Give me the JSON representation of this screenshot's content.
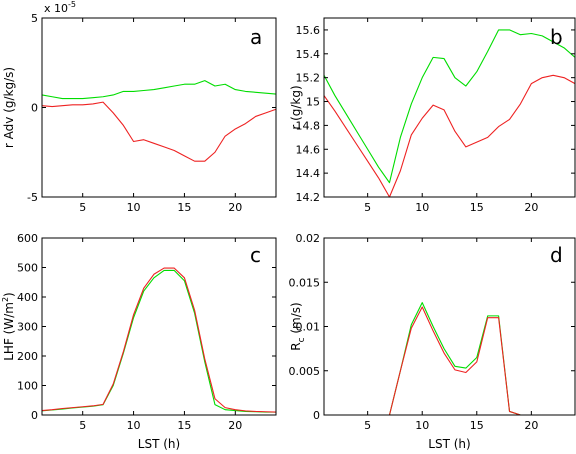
{
  "chart_data": [
    {
      "type": "line",
      "panel": "a",
      "xlabel": "",
      "ylabel": "r Adv (g/kg/s)",
      "multiplier": "x 10",
      "multiplier_exp": "-5",
      "xlim": [
        1,
        24
      ],
      "ylim": [
        -5,
        5
      ],
      "xticks": [
        5,
        10,
        15,
        20
      ],
      "yticks": [
        -5,
        0,
        5
      ],
      "series": [
        {
          "color": "#00dd00",
          "x": [
            1,
            2,
            3,
            4,
            5,
            6,
            7,
            8,
            9,
            10,
            11,
            12,
            13,
            14,
            15,
            16,
            17,
            18,
            19,
            20,
            21,
            22,
            23,
            24
          ],
          "y": [
            0.7,
            0.6,
            0.5,
            0.5,
            0.5,
            0.55,
            0.6,
            0.7,
            0.9,
            0.9,
            0.95,
            1.0,
            1.1,
            1.2,
            1.3,
            1.3,
            1.5,
            1.2,
            1.3,
            1.0,
            0.9,
            0.85,
            0.8,
            0.75
          ]
        },
        {
          "color": "#ee2222",
          "x": [
            1,
            2,
            3,
            4,
            5,
            6,
            7,
            8,
            9,
            10,
            11,
            12,
            13,
            14,
            15,
            16,
            17,
            18,
            19,
            20,
            21,
            22,
            23,
            24
          ],
          "y": [
            0.1,
            0.05,
            0.1,
            0.15,
            0.15,
            0.2,
            0.3,
            -0.3,
            -1.0,
            -1.9,
            -1.8,
            -2.0,
            -2.2,
            -2.4,
            -2.7,
            -3.0,
            -3.0,
            -2.5,
            -1.6,
            -1.2,
            -0.9,
            -0.5,
            -0.3,
            -0.1
          ]
        }
      ]
    },
    {
      "type": "line",
      "panel": "b",
      "xlabel": "",
      "ylabel": "r (g/kg)",
      "xlim": [
        1,
        24
      ],
      "ylim": [
        14.2,
        15.7
      ],
      "xticks": [
        5,
        10,
        15,
        20
      ],
      "yticks": [
        14.2,
        14.4,
        14.6,
        14.8,
        15,
        15.2,
        15.4,
        15.6
      ],
      "series": [
        {
          "color": "#00dd00",
          "x": [
            1,
            2,
            3,
            4,
            5,
            6,
            7,
            8,
            9,
            10,
            11,
            12,
            13,
            14,
            15,
            16,
            17,
            18,
            19,
            20,
            21,
            22,
            23,
            24
          ],
          "y": [
            15.22,
            15.05,
            14.9,
            14.75,
            14.6,
            14.45,
            14.32,
            14.7,
            14.98,
            15.2,
            15.37,
            15.36,
            15.2,
            15.13,
            15.25,
            15.42,
            15.6,
            15.6,
            15.56,
            15.57,
            15.55,
            15.5,
            15.45,
            15.37
          ]
        },
        {
          "color": "#ee2222",
          "x": [
            1,
            2,
            3,
            4,
            5,
            6,
            7,
            8,
            9,
            10,
            11,
            12,
            13,
            14,
            15,
            16,
            17,
            18,
            19,
            20,
            21,
            22,
            23,
            24
          ],
          "y": [
            15.05,
            14.92,
            14.78,
            14.64,
            14.5,
            14.36,
            14.2,
            14.42,
            14.72,
            14.86,
            14.97,
            14.93,
            14.75,
            14.62,
            14.66,
            14.7,
            14.79,
            14.85,
            14.98,
            15.15,
            15.2,
            15.22,
            15.2,
            15.15
          ]
        }
      ]
    },
    {
      "type": "line",
      "panel": "c",
      "xlabel": "LST (h)",
      "ylabel": "LHF (W/m",
      "ylabel_sup": "2",
      "ylabel_end": ")",
      "xlim": [
        1,
        24
      ],
      "ylim": [
        0,
        600
      ],
      "xticks": [
        5,
        10,
        15,
        20
      ],
      "yticks": [
        0,
        100,
        200,
        300,
        400,
        500,
        600
      ],
      "series": [
        {
          "color": "#00dd00",
          "x": [
            1,
            2,
            3,
            4,
            5,
            6,
            7,
            8,
            9,
            10,
            11,
            12,
            13,
            14,
            15,
            16,
            17,
            18,
            19,
            20,
            21,
            22,
            23,
            24
          ],
          "y": [
            14,
            17,
            20,
            24,
            27,
            30,
            35,
            100,
            210,
            330,
            420,
            465,
            490,
            490,
            455,
            345,
            180,
            35,
            18,
            15,
            12,
            11,
            10,
            10
          ]
        },
        {
          "color": "#ee2222",
          "x": [
            1,
            2,
            3,
            4,
            5,
            6,
            7,
            8,
            9,
            10,
            11,
            12,
            13,
            14,
            15,
            16,
            17,
            18,
            19,
            20,
            21,
            22,
            23,
            24
          ],
          "y": [
            15,
            18,
            22,
            25,
            28,
            31,
            36,
            105,
            215,
            340,
            430,
            477,
            498,
            498,
            465,
            355,
            190,
            55,
            25,
            18,
            14,
            12,
            11,
            10
          ]
        }
      ]
    },
    {
      "type": "line",
      "panel": "d",
      "xlabel": "LST (h)",
      "ylabel": "R",
      "ylabel_sub": "c",
      "ylabel_end": " (m/s)",
      "xlim": [
        1,
        24
      ],
      "ylim": [
        0,
        0.02
      ],
      "xticks": [
        5,
        10,
        15,
        20
      ],
      "yticks": [
        0,
        0.005,
        0.01,
        0.015,
        0.02
      ],
      "series": [
        {
          "color": "#00dd00",
          "x": [
            1,
            2,
            3,
            4,
            5,
            6,
            7,
            8,
            9,
            10,
            11,
            12,
            13,
            14,
            15,
            16,
            17,
            18,
            19,
            20,
            21,
            22,
            23,
            24
          ],
          "y": [
            0,
            0,
            0,
            0,
            0,
            0,
            0,
            0.005,
            0.0102,
            0.0127,
            0.01,
            0.0075,
            0.0055,
            0.0053,
            0.0065,
            0.0112,
            0.0112,
            0.0004,
            0,
            0,
            0,
            0,
            0,
            0
          ]
        },
        {
          "color": "#ee2222",
          "x": [
            1,
            2,
            3,
            4,
            5,
            6,
            7,
            8,
            9,
            10,
            11,
            12,
            13,
            14,
            15,
            16,
            17,
            18,
            19,
            20,
            21,
            22,
            23,
            24
          ],
          "y": [
            0,
            0,
            0,
            0,
            0,
            0,
            0,
            0.005,
            0.0098,
            0.0122,
            0.0095,
            0.007,
            0.0051,
            0.0048,
            0.006,
            0.011,
            0.011,
            0.0004,
            0,
            0,
            0,
            0,
            0,
            0
          ]
        }
      ]
    }
  ]
}
